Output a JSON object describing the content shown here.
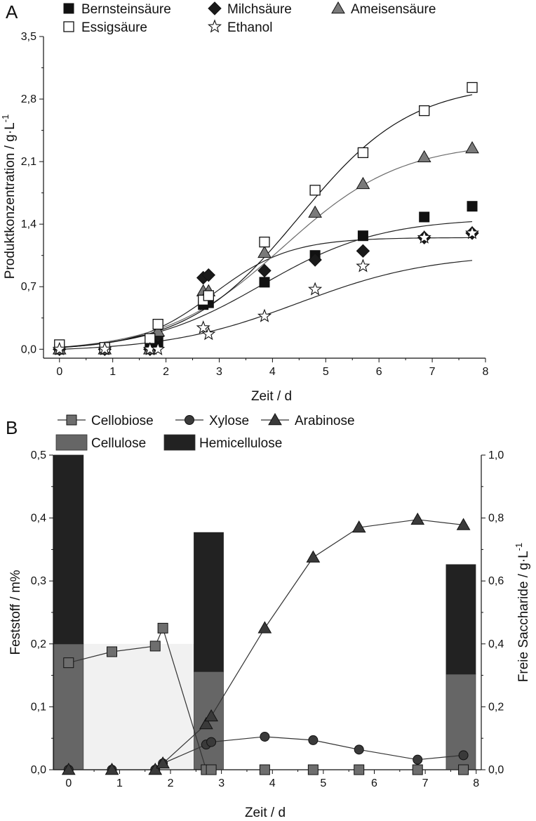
{
  "chart_data": [
    {
      "type": "scatter",
      "panel_label": "A",
      "xlabel": "Zeit / d",
      "ylabel": "Produktkonzentration / g·L",
      "ylabel_sup": "-1",
      "xlim": [
        -0.3,
        8
      ],
      "ylim": [
        -0.1,
        3.5
      ],
      "x_ticks": [
        0,
        1,
        2,
        3,
        4,
        5,
        6,
        7,
        8
      ],
      "x_tick_labels": [
        "0",
        "1",
        "2",
        "3",
        "4",
        "5",
        "6",
        "7",
        "8"
      ],
      "y_ticks": [
        0.0,
        0.7,
        1.4,
        2.1,
        2.8,
        3.5
      ],
      "y_tick_labels": [
        "0,0",
        "0,7",
        "1,4",
        "2,1",
        "2,8",
        "3,5"
      ],
      "legend_position": "top",
      "series": [
        {
          "name": "Bernsteinsäure",
          "marker": "square-filled",
          "color": "#111111",
          "x": [
            0,
            0.85,
            1.7,
            1.85,
            2.7,
            2.8,
            3.85,
            4.8,
            5.7,
            6.85,
            7.75
          ],
          "y": [
            0.0,
            0.0,
            0.03,
            0.07,
            0.5,
            0.52,
            0.75,
            1.05,
            1.27,
            1.48,
            1.6
          ],
          "fit": {
            "model": "logistic",
            "A": 1.5,
            "x0": 3.8,
            "k": 0.9,
            "base": -0.03
          }
        },
        {
          "name": "Milchsäure",
          "marker": "diamond-filled",
          "color": "#1a1a1a",
          "x": [
            0,
            0.85,
            1.7,
            1.85,
            2.7,
            2.8,
            3.85,
            4.8,
            5.7,
            6.85,
            7.75
          ],
          "y": [
            0.0,
            0.0,
            0.0,
            0.15,
            0.8,
            0.83,
            0.88,
            1.0,
            1.1,
            1.25,
            1.3
          ],
          "fit": {
            "model": "logistic",
            "A": 1.25,
            "x0": 2.9,
            "k": 1.4,
            "base": 0.0
          }
        },
        {
          "name": "Ameisensäure",
          "marker": "triangle-filled",
          "color": "#7a7a7a",
          "x": [
            0,
            0.85,
            1.7,
            1.85,
            2.7,
            2.8,
            3.85,
            4.8,
            5.7,
            6.85,
            7.75
          ],
          "y": [
            0.0,
            0.0,
            0.0,
            0.2,
            0.65,
            0.65,
            1.08,
            1.53,
            1.85,
            2.15,
            2.25
          ],
          "fit": {
            "model": "logistic",
            "A": 2.35,
            "x0": 4.2,
            "k": 0.9,
            "base": -0.03
          }
        },
        {
          "name": "Essigsäure",
          "marker": "square-open",
          "color": "#111111",
          "x": [
            0,
            0.85,
            1.7,
            1.85,
            2.7,
            2.8,
            3.85,
            4.8,
            5.7,
            6.85,
            7.75
          ],
          "y": [
            0.05,
            0.02,
            0.12,
            0.28,
            0.55,
            0.6,
            1.2,
            1.78,
            2.2,
            2.67,
            2.93
          ],
          "fit": {
            "model": "logistic",
            "A": 3.0,
            "x0": 4.5,
            "k": 0.95,
            "base": -0.02
          }
        },
        {
          "name": "Ethanol",
          "marker": "star-open",
          "color": "#111111",
          "x": [
            0,
            0.85,
            1.7,
            1.85,
            2.7,
            2.8,
            3.85,
            4.8,
            5.7,
            6.85,
            7.75
          ],
          "y": [
            0.0,
            0.0,
            0.0,
            0.0,
            0.24,
            0.17,
            0.37,
            0.67,
            0.93,
            1.25,
            1.3
          ],
          "fit": {
            "model": "logistic",
            "A": 1.1,
            "x0": 4.5,
            "k": 0.8,
            "base": -0.03
          }
        }
      ]
    },
    {
      "type": "bar",
      "panel_label": "B",
      "xlabel": "Zeit / d",
      "ylabel": "Feststoff / m%",
      "ylabel_right": "Freie Saccharide / g·L",
      "ylabel_right_sup": "-1",
      "xlim": [
        -0.3,
        8.1
      ],
      "ylim": [
        0,
        0.5
      ],
      "ylim_right": [
        0,
        1.0
      ],
      "x_ticks": [
        0,
        1,
        2,
        3,
        4,
        5,
        6,
        7,
        8
      ],
      "x_tick_labels": [
        "0",
        "1",
        "2",
        "3",
        "4",
        "5",
        "6",
        "7",
        "8"
      ],
      "y_ticks": [
        0.0,
        0.1,
        0.2,
        0.3,
        0.4,
        0.5
      ],
      "y_tick_labels": [
        "0,0",
        "0,1",
        "0,2",
        "0,3",
        "0,4",
        "0,5"
      ],
      "y_ticks_right": [
        0.0,
        0.2,
        0.4,
        0.6,
        0.8,
        1.0
      ],
      "y_tick_labels_right": [
        "0,0",
        "0,2",
        "0,4",
        "0,6",
        "0,8",
        "1,0"
      ],
      "legend_position": "top",
      "bars": {
        "x": [
          0,
          2.75,
          7.7
        ],
        "series": [
          {
            "name": "Cellulose",
            "color": "#666666",
            "values": [
              0.2,
              0.156,
              0.152
            ]
          },
          {
            "name": "Hemicellulose",
            "color": "#222222",
            "values": [
              0.3,
              0.221,
              0.174
            ]
          }
        ]
      },
      "lines": [
        {
          "name": "Cellobiose",
          "marker": "square",
          "color": "#6e6e6e",
          "axis": "right",
          "x": [
            0,
            0.85,
            1.7,
            1.85,
            2.7,
            2.8,
            3.85,
            4.8,
            5.7,
            6.85,
            7.75
          ],
          "y": [
            0.34,
            0.375,
            0.393,
            0.45,
            0.0,
            0.0,
            0.0,
            0.0,
            0.0,
            0.0,
            0.0
          ]
        },
        {
          "name": "Xylose",
          "marker": "circle",
          "color": "#3a3a3a",
          "axis": "right",
          "x": [
            0,
            0.85,
            1.7,
            1.85,
            2.7,
            2.8,
            3.85,
            4.8,
            5.7,
            6.85,
            7.75
          ],
          "y": [
            0.0,
            0.0,
            0.0,
            0.02,
            0.08,
            0.088,
            0.105,
            0.094,
            0.064,
            0.032,
            0.046
          ]
        },
        {
          "name": "Arabinose",
          "marker": "triangle",
          "color": "#3a3a3a",
          "axis": "right",
          "x": [
            0,
            0.85,
            1.7,
            1.85,
            2.7,
            2.8,
            3.85,
            4.8,
            5.7,
            6.85,
            7.75
          ],
          "y": [
            0.0,
            0.0,
            0.0,
            0.02,
            0.145,
            0.17,
            0.45,
            0.675,
            0.77,
            0.795,
            0.778
          ]
        }
      ]
    }
  ]
}
